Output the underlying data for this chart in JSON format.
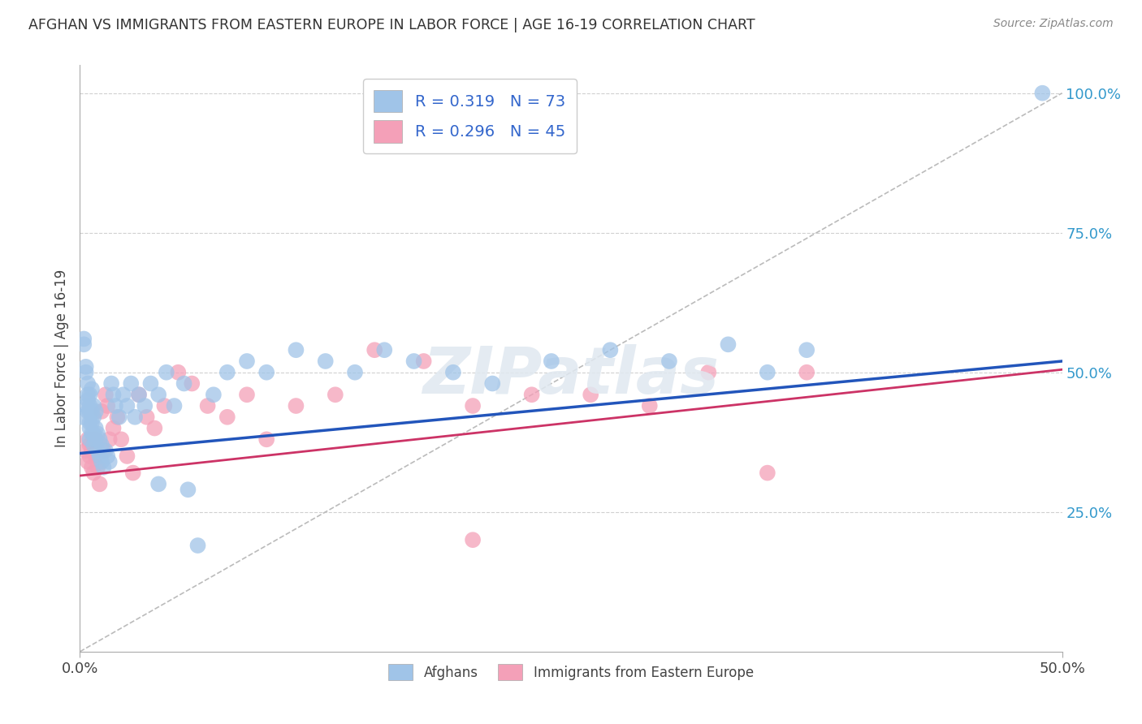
{
  "title": "AFGHAN VS IMMIGRANTS FROM EASTERN EUROPE IN LABOR FORCE | AGE 16-19 CORRELATION CHART",
  "source": "Source: ZipAtlas.com",
  "ylabel": "In Labor Force | Age 16-19",
  "xlim": [
    0.0,
    0.5
  ],
  "ylim": [
    0.0,
    1.05
  ],
  "ytick_vals_right": [
    0.25,
    0.5,
    0.75,
    1.0
  ],
  "grid_color": "#d0d0d0",
  "background_color": "#ffffff",
  "blue_scatter_color": "#a0c4e8",
  "pink_scatter_color": "#f4a0b8",
  "blue_line_color": "#2255bb",
  "pink_line_color": "#cc3366",
  "dashed_line_color": "#bbbbbb",
  "legend_text_color": "#3366cc",
  "right_axis_color": "#3399cc",
  "afghans_x": [
    0.001,
    0.002,
    0.002,
    0.003,
    0.003,
    0.003,
    0.004,
    0.004,
    0.004,
    0.004,
    0.005,
    0.005,
    0.005,
    0.005,
    0.005,
    0.005,
    0.006,
    0.006,
    0.006,
    0.006,
    0.007,
    0.007,
    0.007,
    0.007,
    0.008,
    0.008,
    0.008,
    0.009,
    0.009,
    0.01,
    0.01,
    0.011,
    0.011,
    0.012,
    0.013,
    0.014,
    0.015,
    0.016,
    0.017,
    0.018,
    0.02,
    0.022,
    0.024,
    0.026,
    0.028,
    0.03,
    0.033,
    0.036,
    0.04,
    0.044,
    0.048,
    0.053,
    0.06,
    0.068,
    0.075,
    0.085,
    0.095,
    0.11,
    0.125,
    0.14,
    0.155,
    0.17,
    0.19,
    0.21,
    0.24,
    0.27,
    0.3,
    0.33,
    0.35,
    0.37,
    0.04,
    0.055,
    0.49
  ],
  "afghans_y": [
    0.42,
    0.55,
    0.56,
    0.5,
    0.51,
    0.44,
    0.46,
    0.48,
    0.43,
    0.45,
    0.4,
    0.41,
    0.43,
    0.44,
    0.46,
    0.38,
    0.39,
    0.41,
    0.43,
    0.47,
    0.37,
    0.39,
    0.42,
    0.44,
    0.38,
    0.4,
    0.43,
    0.36,
    0.39,
    0.35,
    0.38,
    0.34,
    0.37,
    0.33,
    0.36,
    0.35,
    0.34,
    0.48,
    0.46,
    0.44,
    0.42,
    0.46,
    0.44,
    0.48,
    0.42,
    0.46,
    0.44,
    0.48,
    0.46,
    0.5,
    0.44,
    0.48,
    0.19,
    0.46,
    0.5,
    0.52,
    0.5,
    0.54,
    0.52,
    0.5,
    0.54,
    0.52,
    0.5,
    0.48,
    0.52,
    0.54,
    0.52,
    0.55,
    0.5,
    0.54,
    0.3,
    0.29,
    1.0
  ],
  "eastern_x": [
    0.003,
    0.004,
    0.004,
    0.005,
    0.005,
    0.006,
    0.006,
    0.007,
    0.007,
    0.008,
    0.008,
    0.009,
    0.01,
    0.011,
    0.012,
    0.013,
    0.014,
    0.015,
    0.017,
    0.019,
    0.021,
    0.024,
    0.027,
    0.03,
    0.034,
    0.038,
    0.043,
    0.05,
    0.057,
    0.065,
    0.075,
    0.085,
    0.095,
    0.11,
    0.13,
    0.15,
    0.175,
    0.2,
    0.23,
    0.26,
    0.2,
    0.29,
    0.32,
    0.35,
    0.37
  ],
  "eastern_y": [
    0.36,
    0.34,
    0.38,
    0.35,
    0.37,
    0.33,
    0.36,
    0.38,
    0.32,
    0.35,
    0.38,
    0.33,
    0.3,
    0.43,
    0.36,
    0.46,
    0.44,
    0.38,
    0.4,
    0.42,
    0.38,
    0.35,
    0.32,
    0.46,
    0.42,
    0.4,
    0.44,
    0.5,
    0.48,
    0.44,
    0.42,
    0.46,
    0.38,
    0.44,
    0.46,
    0.54,
    0.52,
    0.44,
    0.46,
    0.46,
    0.2,
    0.44,
    0.5,
    0.32,
    0.5
  ],
  "blue_trend_x": [
    0.0,
    0.5
  ],
  "blue_trend_y": [
    0.355,
    0.52
  ],
  "pink_trend_x": [
    0.0,
    0.5
  ],
  "pink_trend_y": [
    0.315,
    0.505
  ],
  "dashed_trend_x": [
    0.0,
    0.5
  ],
  "dashed_trend_y": [
    0.0,
    1.0
  ]
}
